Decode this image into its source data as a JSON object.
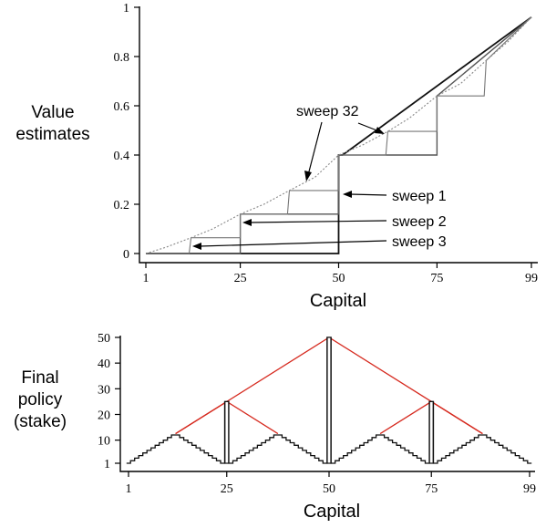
{
  "chart_data": [
    {
      "type": "line",
      "ylabel": [
        "Value",
        "estimates"
      ],
      "xlabel": "Capital",
      "xlim": [
        1,
        99
      ],
      "ylim": [
        0,
        1
      ],
      "xticks": [
        1,
        25,
        50,
        75,
        99
      ],
      "yticks": [
        0,
        0.2,
        0.4,
        0.6,
        0.8,
        1
      ],
      "ytick_labels": [
        "0",
        "0.2",
        "0.4",
        "0.6",
        "0.8",
        "1"
      ],
      "annotations": [
        {
          "text": "sweep 32",
          "target": "sweep 32 curve"
        },
        {
          "text": "sweep 1",
          "target": "sweep 1 curve"
        },
        {
          "text": "sweep 2",
          "target": "sweep 2 curve"
        },
        {
          "text": "sweep 3",
          "target": "sweep 3 curve"
        }
      ],
      "series": [
        {
          "name": "sweep 1",
          "x": [
            1,
            50,
            50,
            51,
            99
          ],
          "y": [
            0,
            0,
            0.4,
            0.4,
            0.96
          ]
        },
        {
          "name": "sweep 2",
          "x": [
            1,
            25,
            25,
            50,
            50,
            75,
            75,
            99
          ],
          "y": [
            0,
            0,
            0.16,
            0.16,
            0.4,
            0.4,
            0.64,
            0.96
          ]
        },
        {
          "name": "sweep 3",
          "x": [
            1,
            12,
            12.5,
            25,
            25,
            37,
            37.5,
            50,
            50,
            62,
            62.5,
            75,
            75,
            87,
            87.5,
            99
          ],
          "y": [
            0,
            0,
            0.064,
            0.064,
            0.16,
            0.16,
            0.256,
            0.256,
            0.4,
            0.4,
            0.496,
            0.496,
            0.64,
            0.64,
            0.784,
            0.96
          ]
        },
        {
          "name": "sweep 32",
          "x": [
            1,
            6,
            12.5,
            18,
            25,
            31,
            37.5,
            44,
            50,
            56,
            62.5,
            68,
            75,
            81,
            87.5,
            93,
            99
          ],
          "y": [
            0,
            0.025,
            0.064,
            0.1,
            0.16,
            0.2,
            0.256,
            0.31,
            0.4,
            0.44,
            0.496,
            0.55,
            0.64,
            0.69,
            0.784,
            0.86,
            0.96
          ]
        }
      ]
    },
    {
      "type": "line",
      "ylabel": [
        "Final",
        "policy",
        "(stake)"
      ],
      "xlabel": "Capital",
      "xlim": [
        1,
        99
      ],
      "ylim": [
        1,
        50
      ],
      "xticks": [
        1,
        25,
        50,
        75,
        99
      ],
      "yticks": [
        1,
        10,
        20,
        30,
        40,
        50
      ],
      "series": [
        {
          "name": "policy",
          "stake_by_capital": [
            1,
            2,
            3,
            4,
            5,
            6,
            7,
            8,
            9,
            10,
            11,
            12,
            12,
            11,
            10,
            9,
            8,
            7,
            6,
            5,
            4,
            3,
            2,
            1,
            25,
            1,
            2,
            3,
            4,
            5,
            6,
            7,
            8,
            9,
            10,
            11,
            12,
            12,
            11,
            10,
            9,
            8,
            7,
            6,
            5,
            4,
            3,
            2,
            1,
            50,
            1,
            2,
            3,
            4,
            5,
            6,
            7,
            8,
            9,
            10,
            11,
            12,
            12,
            11,
            10,
            9,
            8,
            7,
            6,
            5,
            4,
            3,
            2,
            1,
            25,
            1,
            2,
            3,
            4,
            5,
            6,
            7,
            8,
            9,
            10,
            11,
            12,
            12,
            11,
            10,
            9,
            8,
            7,
            6,
            5,
            4,
            3,
            2,
            1
          ]
        }
      ],
      "envelope_color": "#d62a1f",
      "envelope": [
        {
          "x": [
            12.5,
            25,
            37.5
          ],
          "y": [
            12.5,
            25,
            12.5
          ]
        },
        {
          "x": [
            12.5,
            50,
            87.5
          ],
          "y": [
            12.5,
            50,
            12.5
          ]
        },
        {
          "x": [
            62.5,
            75,
            87.5
          ],
          "y": [
            12.5,
            25,
            12.5
          ]
        }
      ]
    }
  ]
}
